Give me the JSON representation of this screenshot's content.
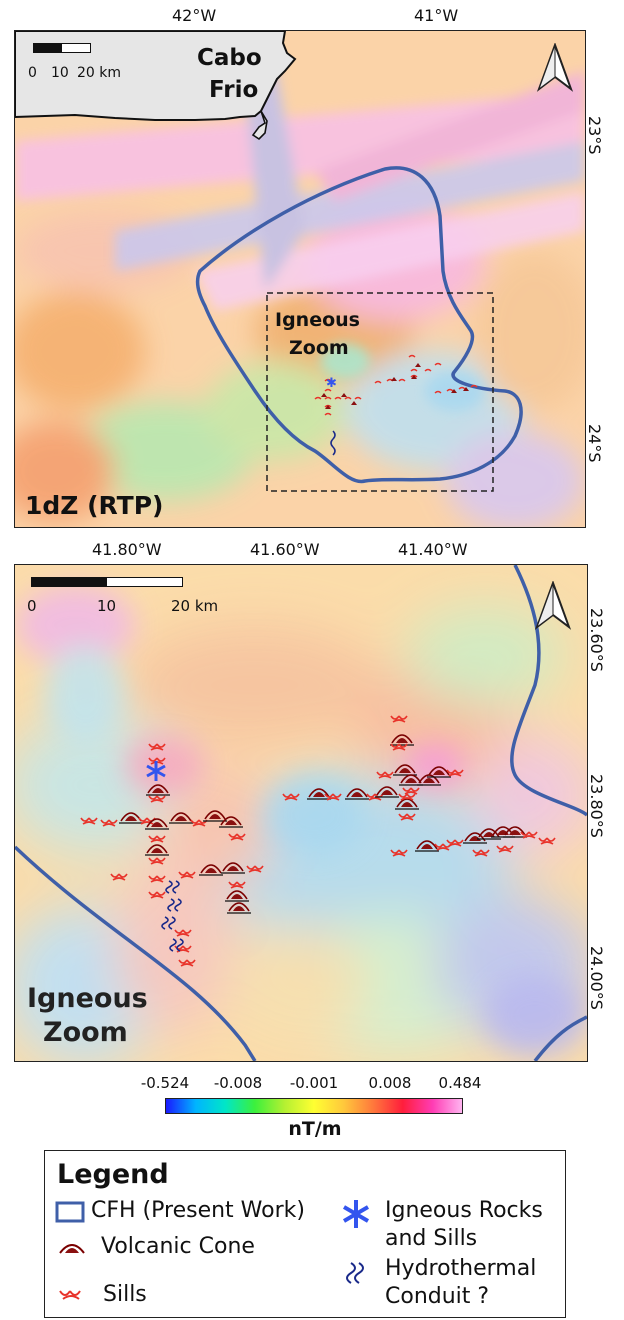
{
  "top_map": {
    "lon_labels": [
      "42°W",
      "41°W"
    ],
    "lat_labels": [
      "23°S",
      "24°S"
    ],
    "scale_labels": [
      "0",
      "10",
      "20 km"
    ],
    "place_name": [
      "Cabo",
      "Frio"
    ],
    "zoom_label": [
      "Igneous",
      "Zoom"
    ],
    "panel_title": "1dZ (RTP)"
  },
  "bottom_map": {
    "lon_labels": [
      "41.80°W",
      "41.60°W",
      "41.40°W"
    ],
    "lat_labels": [
      "23.60°S",
      "23.80°S",
      "24.00°S"
    ],
    "scale_labels": [
      "0",
      "10",
      "20 km"
    ],
    "panel_title": [
      "Igneous",
      "Zoom"
    ]
  },
  "colorbar": {
    "tick_labels": [
      "-0.524",
      "-0.008",
      "-0.001",
      "0.008",
      "0.484"
    ],
    "unit": "nT/m",
    "colors": [
      "#1a1aff",
      "#00b4ff",
      "#00e6c8",
      "#3cf03c",
      "#b4f032",
      "#ffff32",
      "#ffc83c",
      "#ff783c",
      "#ff1e3c",
      "#ff3cb4",
      "#ffb4f0"
    ]
  },
  "legend": {
    "title": "Legend",
    "items": {
      "cfh": "CFH (Present Work)",
      "cone": "Volcanic Cone",
      "sills": "Sills",
      "igneous_1": "Igneous Rocks",
      "igneous_2": "and Sills",
      "hydro_1": "Hydrothermal",
      "hydro_2": "Conduit ?"
    }
  },
  "styles": {
    "boundary_color": "#3f5fa8",
    "cone_color": "#8a1010",
    "sill_color": "#e8332a",
    "star_color": "#3355ee",
    "conduit_color": "#1a2a8a"
  }
}
